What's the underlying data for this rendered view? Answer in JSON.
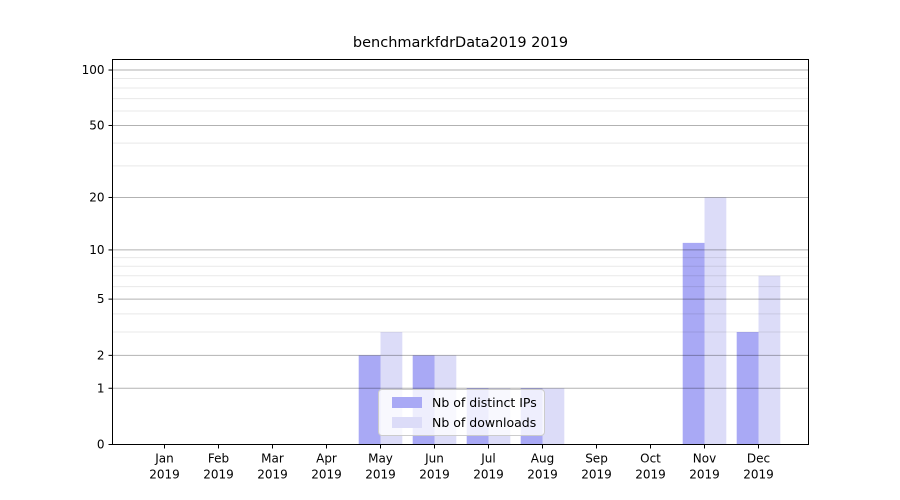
{
  "chart_data": {
    "type": "bar",
    "title": "benchmarkfdrData2019 2019",
    "categories": [
      "Jan",
      "Feb",
      "Mar",
      "Apr",
      "May",
      "Jun",
      "Jul",
      "Aug",
      "Sep",
      "Oct",
      "Nov",
      "Dec"
    ],
    "category_year": "2019",
    "series": [
      {
        "name": "Nb of distinct IPs",
        "color": "#a9a9f5",
        "values": [
          0,
          0,
          0,
          0,
          2,
          2,
          1,
          1,
          0,
          0,
          11,
          3
        ]
      },
      {
        "name": "Nb of downloads",
        "color": "#dcdcf8",
        "values": [
          0,
          0,
          0,
          0,
          3,
          2,
          1,
          1,
          0,
          0,
          20,
          7
        ]
      }
    ],
    "xlabel": "",
    "ylabel": "",
    "y_axis": {
      "scale": "log1p",
      "major_ticks": [
        0,
        1,
        2,
        5,
        10,
        20,
        50,
        100
      ],
      "minor_ticks": [
        3,
        4,
        6,
        7,
        8,
        9,
        30,
        40,
        60,
        70,
        80,
        90
      ],
      "ylim": [
        0,
        114
      ]
    },
    "grid": {
      "major_color": "#b3b3b3",
      "minor_color": "#e9e9e9",
      "on": true
    },
    "legend_position": "lower-center",
    "axis_color": "#000000",
    "text_color": "#000000"
  }
}
